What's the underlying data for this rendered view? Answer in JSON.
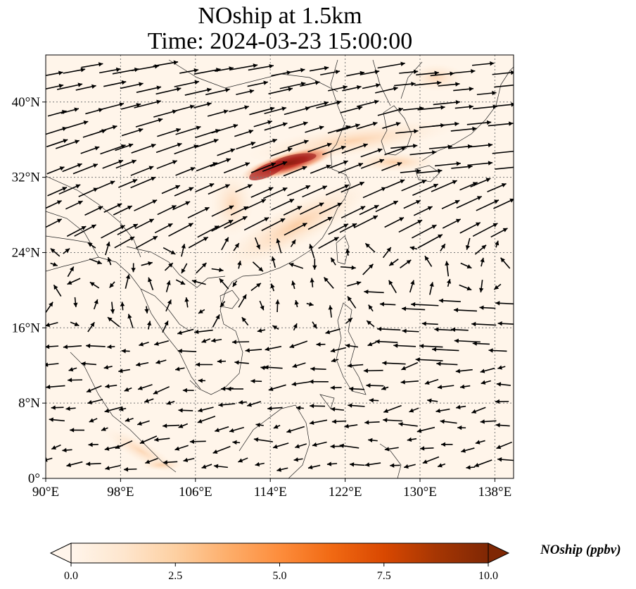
{
  "title_line1": "NOship at 1.5km",
  "title_line2": "Time: 2024-03-23 15:00:00",
  "map": {
    "lon_range": [
      90,
      140
    ],
    "lat_range": [
      0,
      45
    ],
    "lon_ticks": [
      {
        "value": 90,
        "label": "90°E"
      },
      {
        "value": 98,
        "label": "98°E"
      },
      {
        "value": 106,
        "label": "106°E"
      },
      {
        "value": 114,
        "label": "114°E"
      },
      {
        "value": 122,
        "label": "122°E"
      },
      {
        "value": 130,
        "label": "130°E"
      },
      {
        "value": 138,
        "label": "138°E"
      }
    ],
    "lat_ticks": [
      {
        "value": 0,
        "label": "0°"
      },
      {
        "value": 8,
        "label": "8°N"
      },
      {
        "value": 16,
        "label": "16°N"
      },
      {
        "value": 24,
        "label": "24°N"
      },
      {
        "value": 32,
        "label": "32°N"
      },
      {
        "value": 40,
        "label": "40°N"
      }
    ],
    "gridlines": true,
    "field_variable": "NOship",
    "high_concentration_region": {
      "lon_range": [
        111,
        119
      ],
      "lat_range": [
        32,
        35
      ],
      "peak_ppbv": 10
    }
  },
  "colorbar": {
    "label": "NOship (ppbv)",
    "min": 0.0,
    "max": 10.0,
    "extend": "both",
    "colors": [
      "#fff5eb",
      "#fee6ce",
      "#fdd0a2",
      "#fdae6b",
      "#fd8d3c",
      "#f16913",
      "#d94801",
      "#a63603",
      "#7f2704"
    ],
    "ticks": [
      {
        "value": 0,
        "label": "0.0"
      },
      {
        "value": 2.5,
        "label": "2.5"
      },
      {
        "value": 5,
        "label": "5.0"
      },
      {
        "value": 7.5,
        "label": "7.5"
      },
      {
        "value": 10,
        "label": "10.0"
      }
    ]
  }
}
